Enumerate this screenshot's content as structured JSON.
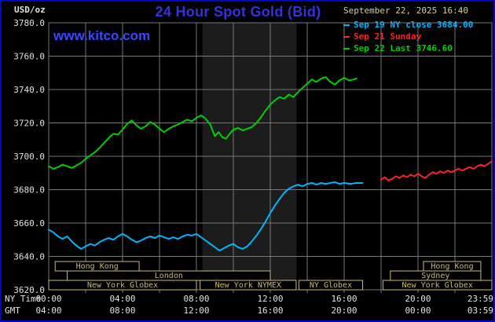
{
  "header": {
    "units_label": "USD/oz",
    "title": "24 Hour Spot Gold (Bid)",
    "datetime": "September 22, 2025 16:40",
    "watermark": "www.kitco.com"
  },
  "axes": {
    "row1_label": "NY Time",
    "row2_label": "GMT",
    "ny_ticks": [
      {
        "hour": 0,
        "label": "00:00"
      },
      {
        "hour": 4,
        "label": "04:00"
      },
      {
        "hour": 8,
        "label": "08:00"
      },
      {
        "hour": 12,
        "label": "12:00"
      },
      {
        "hour": 16,
        "label": "16:00"
      },
      {
        "hour": 20,
        "label": "20:00"
      },
      {
        "hour": 23.98,
        "label": "23:59"
      }
    ],
    "gmt_ticks": [
      {
        "hour": 0,
        "label": "04:00"
      },
      {
        "hour": 4,
        "label": "08:00"
      },
      {
        "hour": 8,
        "label": "12:00"
      },
      {
        "hour": 12,
        "label": "16:00"
      },
      {
        "hour": 16,
        "label": "20:00"
      },
      {
        "hour": 20,
        "label": "00:00"
      },
      {
        "hour": 23.98,
        "label": "03:59"
      }
    ]
  },
  "legend": [
    {
      "id": "sep19",
      "label": "Sep 19 NY close 3684.00",
      "color": "#00b4ff"
    },
    {
      "id": "sep21",
      "label": "Sep 21 Sunday",
      "color": "#ff2222"
    },
    {
      "id": "sep22",
      "label": "Sep 22 Last 3746.60",
      "color": "#00cf00"
    }
  ],
  "colors": {
    "background": "#000000",
    "frame_border": "#0008c8",
    "title": "#3232e0",
    "watermark": "#3748ff",
    "grid": "#787878",
    "axis_text": "#e2e2e2",
    "timestamp_text": "#d6cf9c",
    "session": "#c9b873",
    "band": "#1c1c1c"
  },
  "chart_data": {
    "type": "line",
    "title": "24 Hour Spot Gold (Bid)",
    "ylabel": "USD/oz",
    "xlabel": "NY Time (hours)",
    "xlim": [
      0,
      24
    ],
    "ylim": [
      3620,
      3780
    ],
    "y_ticks": [
      3620,
      3640,
      3660,
      3680,
      3700,
      3720,
      3740,
      3760,
      3780
    ],
    "x_grid_step_hours": 2,
    "bands": [
      {
        "start": 8.33,
        "end": 13.42
      }
    ],
    "sessions": [
      {
        "label": "Hong Kong",
        "row": 0,
        "start": 0.35,
        "end": 4.9
      },
      {
        "label": "Hong Kong",
        "row": 0,
        "start": 20.3,
        "end": 23.4
      },
      {
        "label": "London",
        "row": 1,
        "start": 1.0,
        "end": 12.0
      },
      {
        "label": "Sydney",
        "row": 1,
        "start": 18.5,
        "end": 23.4
      },
      {
        "label": "New York Globex",
        "row": 2,
        "start": 0.0,
        "end": 8.0
      },
      {
        "label": "New York NYMEX",
        "row": 2,
        "start": 8.2,
        "end": 13.4
      },
      {
        "label": "NY Globex",
        "row": 2,
        "start": 13.55,
        "end": 17.0
      },
      {
        "label": "New York Globex",
        "row": 2,
        "start": 18.1,
        "end": 24.0
      }
    ],
    "series": [
      {
        "id": "sep19",
        "name": "Sep 19 NY close",
        "color": "#00b4ff",
        "close": 3684.0,
        "points": [
          [
            0,
            3656
          ],
          [
            0.25,
            3654.5
          ],
          [
            0.5,
            3652
          ],
          [
            0.75,
            3650.5
          ],
          [
            1,
            3652
          ],
          [
            1.25,
            3649
          ],
          [
            1.5,
            3646.5
          ],
          [
            1.75,
            3644.5
          ],
          [
            2,
            3646
          ],
          [
            2.25,
            3647.5
          ],
          [
            2.5,
            3646.5
          ],
          [
            2.75,
            3648.5
          ],
          [
            3,
            3650
          ],
          [
            3.25,
            3651
          ],
          [
            3.5,
            3650
          ],
          [
            3.75,
            3652
          ],
          [
            4,
            3653.5
          ],
          [
            4.25,
            3652
          ],
          [
            4.5,
            3650
          ],
          [
            4.75,
            3648.5
          ],
          [
            5,
            3649.5
          ],
          [
            5.25,
            3651
          ],
          [
            5.5,
            3652
          ],
          [
            5.75,
            3651
          ],
          [
            6,
            3652.5
          ],
          [
            6.25,
            3651.5
          ],
          [
            6.5,
            3650.5
          ],
          [
            6.75,
            3651.5
          ],
          [
            7,
            3650.5
          ],
          [
            7.25,
            3652
          ],
          [
            7.5,
            3653
          ],
          [
            7.75,
            3652.5
          ],
          [
            8,
            3653.5
          ],
          [
            8.25,
            3651.5
          ],
          [
            8.5,
            3649.5
          ],
          [
            8.75,
            3647.5
          ],
          [
            9,
            3645.5
          ],
          [
            9.25,
            3643.5
          ],
          [
            9.5,
            3645
          ],
          [
            9.75,
            3646.5
          ],
          [
            10,
            3647.5
          ],
          [
            10.25,
            3645.5
          ],
          [
            10.5,
            3644.5
          ],
          [
            10.75,
            3646
          ],
          [
            11,
            3649
          ],
          [
            11.25,
            3652.5
          ],
          [
            11.5,
            3656.5
          ],
          [
            11.75,
            3661
          ],
          [
            12,
            3666
          ],
          [
            12.25,
            3670.5
          ],
          [
            12.5,
            3674.5
          ],
          [
            12.75,
            3678
          ],
          [
            13,
            3680.5
          ],
          [
            13.25,
            3682
          ],
          [
            13.5,
            3683
          ],
          [
            13.75,
            3682
          ],
          [
            14,
            3683.5
          ],
          [
            14.25,
            3684
          ],
          [
            14.5,
            3683
          ],
          [
            14.75,
            3684
          ],
          [
            15,
            3683.5
          ],
          [
            15.25,
            3684
          ],
          [
            15.5,
            3684.5
          ],
          [
            15.75,
            3683.5
          ],
          [
            16,
            3684
          ],
          [
            16.33,
            3683.5
          ],
          [
            16.67,
            3684
          ],
          [
            17,
            3684
          ]
        ]
      },
      {
        "id": "sep21",
        "name": "Sep 21 Sunday",
        "color": "#ff2222",
        "points": [
          [
            18,
            3686
          ],
          [
            18.2,
            3687.5
          ],
          [
            18.4,
            3685.5
          ],
          [
            18.6,
            3686.5
          ],
          [
            18.8,
            3688
          ],
          [
            19,
            3687
          ],
          [
            19.2,
            3688.5
          ],
          [
            19.4,
            3687.5
          ],
          [
            19.6,
            3689
          ],
          [
            19.8,
            3688
          ],
          [
            20,
            3689.5
          ],
          [
            20.2,
            3688
          ],
          [
            20.4,
            3687
          ],
          [
            20.6,
            3689
          ],
          [
            20.8,
            3690.5
          ],
          [
            21,
            3689.5
          ],
          [
            21.2,
            3691
          ],
          [
            21.4,
            3690
          ],
          [
            21.6,
            3691.5
          ],
          [
            21.8,
            3690.5
          ],
          [
            22,
            3691.5
          ],
          [
            22.2,
            3692.5
          ],
          [
            22.4,
            3691.5
          ],
          [
            22.6,
            3692.5
          ],
          [
            22.8,
            3693.5
          ],
          [
            23,
            3692.5
          ],
          [
            23.2,
            3694
          ],
          [
            23.4,
            3695
          ],
          [
            23.6,
            3694
          ],
          [
            23.8,
            3695.5
          ],
          [
            24,
            3697
          ]
        ]
      },
      {
        "id": "sep22",
        "name": "Sep 22",
        "color": "#00cf00",
        "last": 3746.6,
        "points": [
          [
            0,
            3694
          ],
          [
            0.25,
            3692.5
          ],
          [
            0.5,
            3693.5
          ],
          [
            0.75,
            3695
          ],
          [
            1,
            3694
          ],
          [
            1.25,
            3693
          ],
          [
            1.5,
            3694.5
          ],
          [
            1.75,
            3696
          ],
          [
            2,
            3698.5
          ],
          [
            2.25,
            3700.5
          ],
          [
            2.5,
            3702.5
          ],
          [
            2.75,
            3705
          ],
          [
            3,
            3708
          ],
          [
            3.25,
            3711
          ],
          [
            3.5,
            3713.5
          ],
          [
            3.75,
            3713
          ],
          [
            4,
            3716
          ],
          [
            4.25,
            3719.5
          ],
          [
            4.5,
            3721.5
          ],
          [
            4.75,
            3718.5
          ],
          [
            5,
            3716.5
          ],
          [
            5.25,
            3718
          ],
          [
            5.5,
            3720.5
          ],
          [
            5.75,
            3719
          ],
          [
            6,
            3716.5
          ],
          [
            6.25,
            3714.5
          ],
          [
            6.5,
            3716.5
          ],
          [
            6.75,
            3718
          ],
          [
            7,
            3719
          ],
          [
            7.25,
            3720.5
          ],
          [
            7.5,
            3722
          ],
          [
            7.75,
            3721
          ],
          [
            8,
            3723
          ],
          [
            8.25,
            3724.5
          ],
          [
            8.5,
            3722.5
          ],
          [
            8.75,
            3719
          ],
          [
            9,
            3712
          ],
          [
            9.2,
            3714.5
          ],
          [
            9.4,
            3711.5
          ],
          [
            9.6,
            3710.5
          ],
          [
            9.8,
            3713.5
          ],
          [
            10,
            3716
          ],
          [
            10.25,
            3717
          ],
          [
            10.5,
            3715.5
          ],
          [
            10.75,
            3716.5
          ],
          [
            11,
            3717.5
          ],
          [
            11.25,
            3720
          ],
          [
            11.5,
            3723.5
          ],
          [
            11.75,
            3727.5
          ],
          [
            12,
            3731
          ],
          [
            12.25,
            3733.5
          ],
          [
            12.5,
            3735.5
          ],
          [
            12.75,
            3734.5
          ],
          [
            13,
            3737
          ],
          [
            13.25,
            3735.5
          ],
          [
            13.5,
            3738.5
          ],
          [
            13.75,
            3741
          ],
          [
            14,
            3743.5
          ],
          [
            14.25,
            3746
          ],
          [
            14.5,
            3744.5
          ],
          [
            14.75,
            3746.5
          ],
          [
            15,
            3747.5
          ],
          [
            15.25,
            3744.5
          ],
          [
            15.5,
            3743
          ],
          [
            15.75,
            3745.5
          ],
          [
            16,
            3747
          ],
          [
            16.25,
            3745.5
          ],
          [
            16.5,
            3746
          ],
          [
            16.67,
            3746.6
          ]
        ]
      }
    ]
  }
}
